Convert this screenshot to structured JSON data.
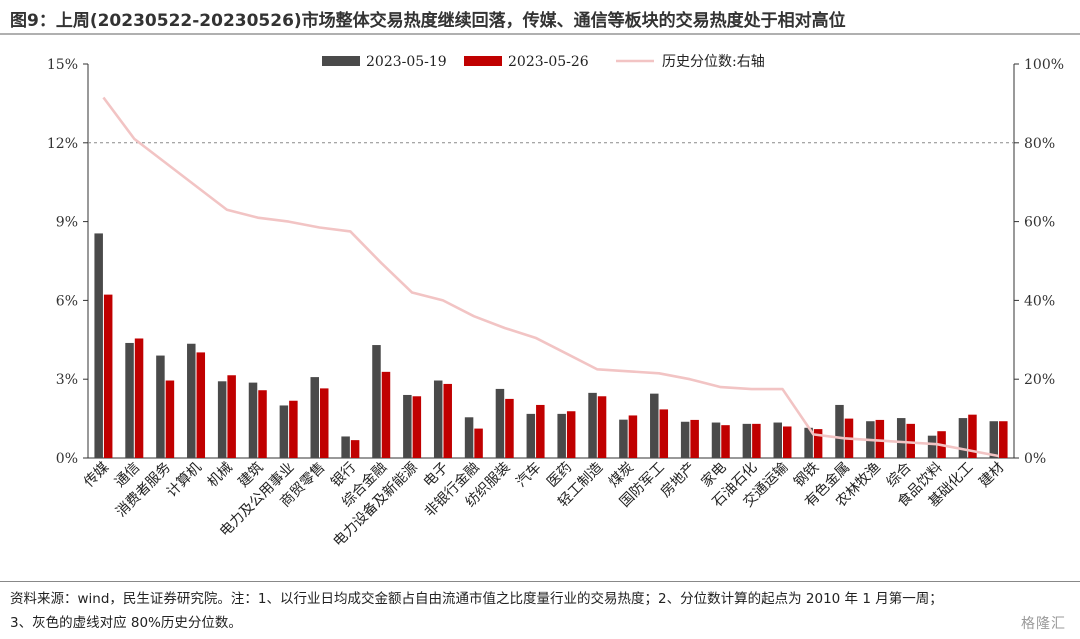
{
  "title": "图9：上周(20230522-20230526)市场整体交易热度继续回落，传媒、通信等板块的交易热度处于相对高位",
  "footnote_line1": "资料来源：wind，民生证券研究院。注：1、以行业日均成交金额占自由流通市值之比度量行业的交易热度；2、分位数计算的起点为 2010 年 1 月第一周；",
  "footnote_line2": "3、灰色的虚线对应 80%历史分位数。",
  "watermark": "格隆汇",
  "chart_data": {
    "type": "bar",
    "categories": [
      "传媒",
      "通信",
      "消费者服务",
      "计算机",
      "机械",
      "建筑",
      "电力及公用事业",
      "商贸零售",
      "银行",
      "综合金融",
      "电力设备及新能源",
      "电子",
      "非银行金融",
      "纺织服装",
      "汽车",
      "医药",
      "轻工制造",
      "煤炭",
      "国防军工",
      "房地产",
      "家电",
      "石油石化",
      "交通运输",
      "钢铁",
      "有色金属",
      "农林牧渔",
      "综合",
      "食品饮料",
      "基础化工",
      "建材"
    ],
    "series": [
      {
        "name": "2023-05-19",
        "axis": "left",
        "color": "#4a4a4a",
        "values": [
          8.55,
          4.38,
          3.9,
          4.35,
          2.92,
          2.87,
          2.0,
          3.08,
          0.82,
          4.3,
          2.4,
          2.95,
          1.55,
          2.63,
          1.68,
          1.68,
          2.48,
          1.46,
          2.45,
          1.38,
          1.35,
          1.3,
          1.35,
          1.15,
          2.02,
          1.4,
          1.52,
          0.85,
          1.52,
          1.4
        ]
      },
      {
        "name": "2023-05-26",
        "axis": "left",
        "color": "#c00000",
        "values": [
          6.22,
          4.55,
          2.95,
          4.02,
          3.15,
          2.58,
          2.18,
          2.65,
          0.68,
          3.28,
          2.35,
          2.82,
          1.12,
          2.25,
          2.02,
          1.78,
          2.35,
          1.62,
          1.85,
          1.45,
          1.25,
          1.3,
          1.2,
          1.1,
          1.5,
          1.45,
          1.3,
          1.02,
          1.65,
          1.4
        ]
      },
      {
        "name": "历史分位数:右轴",
        "axis": "right",
        "type": "line",
        "color": "#f2c4c4",
        "values": [
          91.5,
          81,
          75,
          69,
          63,
          61,
          60,
          58.5,
          57.5,
          49.5,
          42,
          40,
          36,
          33,
          30.5,
          26.5,
          22.5,
          22,
          21.5,
          20,
          18,
          17.5,
          17.5,
          6,
          5,
          4.5,
          4,
          3.5,
          2,
          0.5
        ]
      }
    ],
    "y_left": {
      "min": 0,
      "max": 15,
      "ticks": [
        "0%",
        "3%",
        "6%",
        "9%",
        "12%",
        "15%"
      ]
    },
    "y_right": {
      "min": 0,
      "max": 100,
      "ticks": [
        "0%",
        "20%",
        "40%",
        "60%",
        "80%",
        "100%"
      ]
    },
    "reference_line": {
      "axis": "right",
      "value": 80,
      "style": "dashed"
    },
    "legend_position": "top",
    "grid": false
  }
}
